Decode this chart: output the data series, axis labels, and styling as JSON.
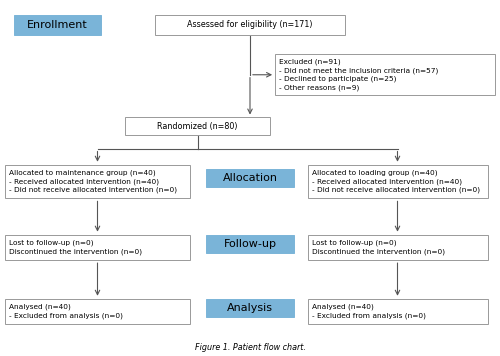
{
  "title": "Figure 1. Patient flow chart.",
  "enrollment_label": "Enrollment",
  "allocation_label": "Allocation",
  "followup_label": "Follow-up",
  "analysis_label": "Analysis",
  "box_eligibility": "Assessed for eligibility (n=171)",
  "box_excluded_line1": "Excluded (n=91)",
  "box_excluded_line2": "- Did not meet the inclusion criteria (n=57)\n- Declined to participate (n=25)\n- Other reasons (n=9)",
  "box_randomized": "Randomized (n=80)",
  "box_left_alloc_l1": "Allocated to maintenance group (n=40)",
  "box_left_alloc_l2": "- Received allocated intervention (n=40)\n- Did not receive allocated intervention (n=0)",
  "box_right_alloc_l1": "Allocated to loading group (n=40)",
  "box_right_alloc_l2": "- Received allocated intervention (n=40)\n- Did not receive allocated intervention (n=0)",
  "box_left_follow": "Lost to follow-up (n=0)\nDiscontinued the intervention (n=0)",
  "box_right_follow": "Lost to follow-up (n=0)\nDiscontinued the intervention (n=0)",
  "box_left_analysis": "Analysed (n=40)\n- Excluded from analysis (n=0)",
  "box_right_analysis": "Analysed (n=40)\n- Excluded from analysis (n=0)",
  "blue_box_color": "#7ab4d8",
  "white_box_edge": "#999999",
  "white_box_face": "#ffffff",
  "arrow_color": "#555555",
  "bg_color": "#ffffff",
  "font_size": 5.8,
  "label_font_size": 8.0
}
